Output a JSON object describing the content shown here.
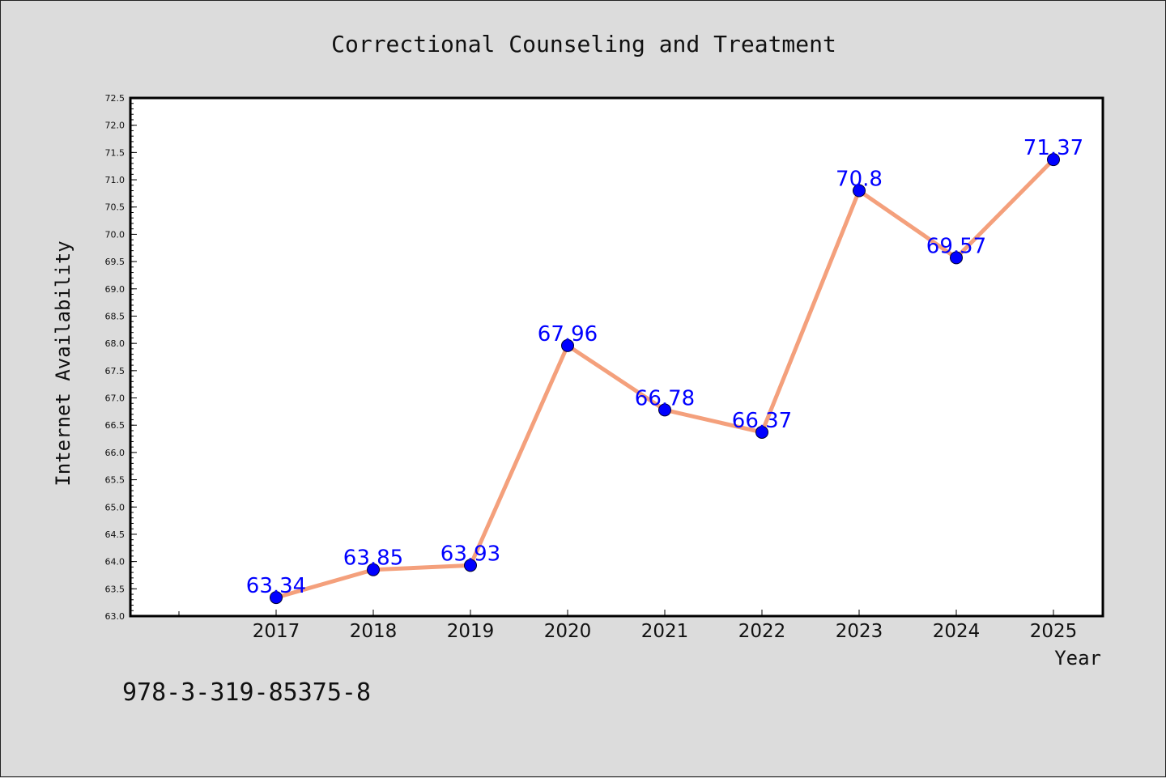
{
  "chart_data": {
    "type": "line",
    "title": "Correctional Counseling and Treatment",
    "xlabel": "Year",
    "ylabel": "Internet Availability",
    "categories": [
      "2017",
      "2018",
      "2019",
      "2020",
      "2021",
      "2022",
      "2023",
      "2024",
      "2025"
    ],
    "series": [
      {
        "values": [
          63.34,
          63.85,
          63.93,
          67.96,
          66.78,
          66.37,
          70.8,
          69.57,
          71.37
        ]
      }
    ],
    "data_labels": [
      "63.34",
      "63.85",
      "63.93",
      "67.96",
      "66.78",
      "66.37",
      "70.8",
      "69.57",
      "71.37"
    ],
    "ylim": [
      63.0,
      72.5
    ],
    "yticks": [
      "63.0",
      "63.5",
      "64.0",
      "64.5",
      "65.0",
      "65.5",
      "66.0",
      "66.5",
      "67.0",
      "67.5",
      "68.0",
      "68.5",
      "69.0",
      "69.5",
      "70.0",
      "70.5",
      "71.0",
      "71.5",
      "72.0",
      "72.5"
    ],
    "grid": false,
    "line_color": "#f4a07c",
    "marker_color": "#0000ff",
    "label_color": "#0000ff",
    "background_color": "#dcdcdc",
    "plot_background_color": "#ffffff"
  },
  "footnote": "978-3-319-85375-8"
}
